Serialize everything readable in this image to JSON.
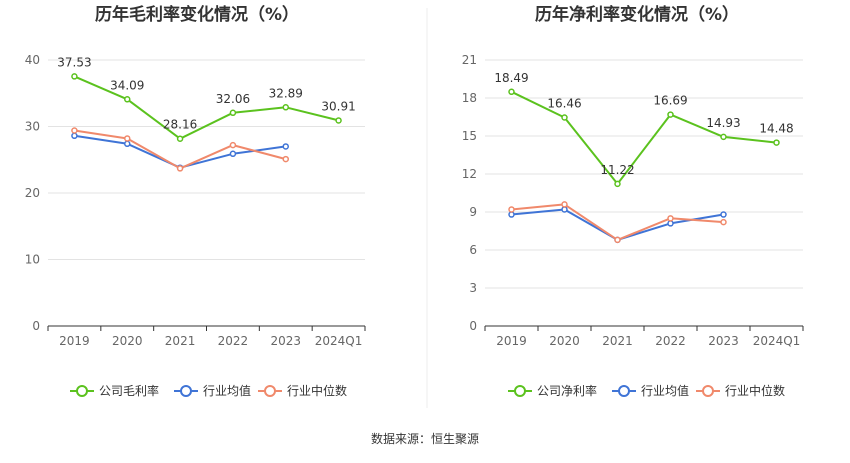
{
  "source": "数据来源：恒生聚源",
  "colors": {
    "company": "#5bc21e",
    "avg": "#3f74d6",
    "median": "#f0896b",
    "grid": "#e3e3e3",
    "axis": "#333333"
  },
  "chart_data": [
    {
      "type": "line",
      "title": "历年毛利率变化情况（%）",
      "categories": [
        "2019",
        "2020",
        "2021",
        "2022",
        "2023",
        "2024Q1"
      ],
      "ylim": [
        0,
        40
      ],
      "yticks": [
        0,
        10,
        20,
        30,
        40
      ],
      "grid": true,
      "legend": "bottom",
      "series": [
        {
          "name": "公司毛利率",
          "key": "company",
          "values": [
            37.53,
            34.09,
            28.16,
            32.06,
            32.89,
            30.91
          ],
          "labels": [
            "37.53",
            "34.09",
            "28.16",
            "32.06",
            "32.89",
            "30.91"
          ]
        },
        {
          "name": "行业均值",
          "key": "avg",
          "values": [
            28.6,
            27.4,
            23.8,
            25.9,
            27.0,
            null
          ]
        },
        {
          "name": "行业中位数",
          "key": "median",
          "values": [
            29.4,
            28.2,
            23.7,
            27.2,
            25.1,
            null
          ]
        }
      ]
    },
    {
      "type": "line",
      "title": "历年净利率变化情况（%）",
      "categories": [
        "2019",
        "2020",
        "2021",
        "2022",
        "2023",
        "2024Q1"
      ],
      "ylim": [
        0,
        21
      ],
      "yticks": [
        0,
        3,
        6,
        9,
        12,
        15,
        18,
        21
      ],
      "grid": true,
      "legend": "bottom",
      "series": [
        {
          "name": "公司净利率",
          "key": "company",
          "values": [
            18.49,
            16.46,
            11.22,
            16.69,
            14.93,
            14.48
          ],
          "labels": [
            "18.49",
            "16.46",
            "11.22",
            "16.69",
            "14.93",
            "14.48"
          ]
        },
        {
          "name": "行业均值",
          "key": "avg",
          "values": [
            8.8,
            9.2,
            6.8,
            8.1,
            8.8,
            null
          ]
        },
        {
          "name": "行业中位数",
          "key": "median",
          "values": [
            9.2,
            9.6,
            6.8,
            8.5,
            8.2,
            null
          ]
        }
      ]
    }
  ]
}
